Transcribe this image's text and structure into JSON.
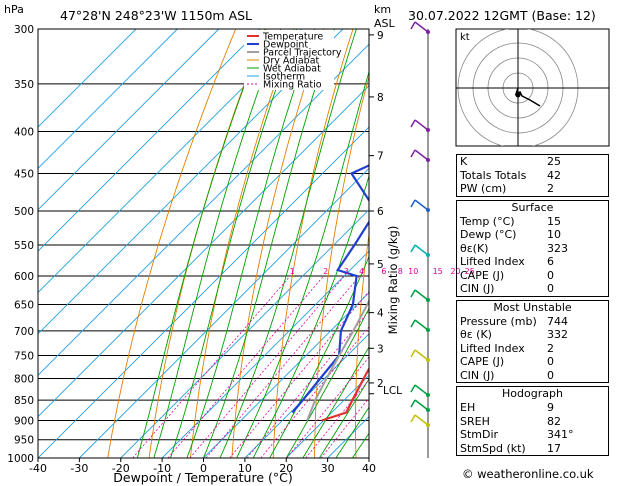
{
  "header": {
    "location": "47°28'N 248°23'W 1150m ASL",
    "datetime": "30.07.2022 12GMT (Base: 12)"
  },
  "chart_data": {
    "type": "line",
    "title": "47°28'N 248°23'W 1150m ASL",
    "xlabel": "Dewpoint / Temperature (°C)",
    "ylabel": "hPa",
    "right_axis_label": "Mixing Ratio (g/kg)",
    "km_label_top": "km",
    "km_label_bottom": "ASL",
    "xlim": [
      -40,
      40
    ],
    "x_ticks": [
      "-40",
      "-30",
      "-20",
      "-10",
      "0",
      "10",
      "20",
      "30",
      "40"
    ],
    "pressure_levels": [
      "300",
      "350",
      "400",
      "450",
      "500",
      "550",
      "600",
      "650",
      "700",
      "750",
      "800",
      "850",
      "900",
      "950",
      "1000"
    ],
    "km_ticks": [
      "9",
      "8",
      "7",
      "6",
      "5",
      "4",
      "3",
      "2"
    ],
    "lcl_label": "LCL",
    "mixing_ratio_labels": [
      "1",
      "2",
      "3",
      "4",
      "6",
      "8",
      "10",
      "15",
      "20",
      "25"
    ],
    "legend": [
      "Temperature",
      "Dewpoint",
      "Parcel Trajectory",
      "Dry Adiabat",
      "Wet Adiabat",
      "Isotherm",
      "Mixing Ratio"
    ],
    "colors": {
      "temperature": "#e03030",
      "dewpoint": "#2040d0",
      "parcel": "#a0a0a0",
      "dry_adiabat": "#e08000",
      "wet_adiabat": "#00a000",
      "isotherm": "#20a0e0",
      "mixing_ratio": "#e000a0"
    },
    "series": [
      {
        "name": "Temperature",
        "points": [
          [
            900,
            19.5
          ],
          [
            880,
            23.5
          ],
          [
            850,
            22
          ],
          [
            800,
            19.5
          ],
          [
            750,
            17
          ],
          [
            700,
            12.5
          ],
          [
            650,
            8
          ],
          [
            600,
            5
          ],
          [
            550,
            0.5
          ],
          [
            500,
            -3.5
          ],
          [
            450,
            -9
          ],
          [
            400,
            -15
          ],
          [
            350,
            -23
          ],
          [
            300,
            -34
          ]
        ]
      },
      {
        "name": "Dewpoint",
        "points": [
          [
            880,
            10.5
          ],
          [
            850,
            10
          ],
          [
            800,
            9
          ],
          [
            750,
            8
          ],
          [
            700,
            2.5
          ],
          [
            650,
            -1
          ],
          [
            600,
            -7
          ],
          [
            590,
            -13
          ],
          [
            550,
            -15
          ],
          [
            500,
            -18
          ],
          [
            450,
            -33
          ],
          [
            420,
            -26
          ],
          [
            400,
            -28
          ],
          [
            350,
            -32
          ],
          [
            300,
            -39
          ]
        ]
      },
      {
        "name": "Parcel Trajectory",
        "points": [
          [
            900,
            16
          ],
          [
            850,
            13
          ],
          [
            800,
            10.5
          ],
          [
            750,
            8
          ],
          [
            700,
            5.5
          ],
          [
            650,
            2.5
          ],
          [
            600,
            -1
          ],
          [
            550,
            -5
          ],
          [
            500,
            -10
          ],
          [
            450,
            -15.5
          ],
          [
            400,
            -22
          ],
          [
            350,
            -30
          ],
          [
            300,
            -40
          ]
        ]
      }
    ],
    "hodograph_label": "kt"
  },
  "stats": {
    "k_label": "K",
    "k": "25",
    "tt_label": "Totals Totals",
    "tt": "42",
    "pw_label": "PW (cm)",
    "pw": "2",
    "surface_title": "Surface",
    "surface": [
      {
        "label": "Temp (°C)",
        "value": "15"
      },
      {
        "label": "Dewp (°C)",
        "value": "10"
      },
      {
        "label": "θε(K)",
        "value": "323"
      },
      {
        "label": "Lifted Index",
        "value": "6"
      },
      {
        "label": "CAPE (J)",
        "value": "0"
      },
      {
        "label": "CIN (J)",
        "value": "0"
      }
    ],
    "mu_title": "Most Unstable",
    "mu": [
      {
        "label": "Pressure (mb)",
        "value": "744"
      },
      {
        "label": "θε (K)",
        "value": "332"
      },
      {
        "label": "Lifted Index",
        "value": "2"
      },
      {
        "label": "CAPE (J)",
        "value": "0"
      },
      {
        "label": "CIN (J)",
        "value": "0"
      }
    ],
    "hodo_title": "Hodograph",
    "hodo": [
      {
        "label": "EH",
        "value": "9"
      },
      {
        "label": "SREH",
        "value": "82"
      },
      {
        "label": "StmDir",
        "value": "341°"
      },
      {
        "label": "StmSpd (kt)",
        "value": "17"
      }
    ]
  },
  "footer": "© weatheronline.co.uk"
}
